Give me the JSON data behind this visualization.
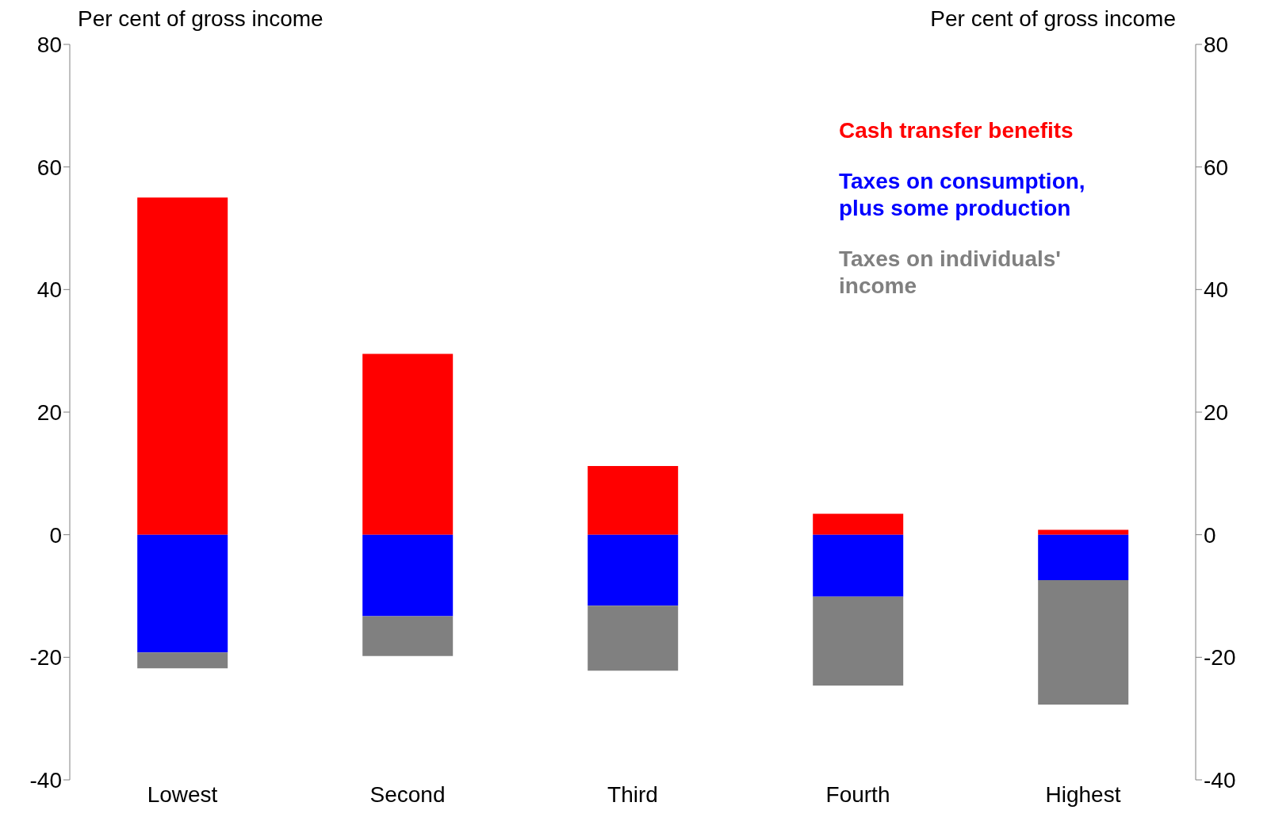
{
  "chart_data": {
    "type": "bar",
    "stacked": true,
    "categories": [
      "Lowest",
      "Second",
      "Third",
      "Fourth",
      "Highest"
    ],
    "series": [
      {
        "name": "Cash transfer benefits",
        "color": "#ff0000",
        "values": [
          55.0,
          29.5,
          11.2,
          3.4,
          0.8
        ]
      },
      {
        "name": "Taxes on consumption, plus some production",
        "color": "#0000ff",
        "values": [
          -19.2,
          -13.3,
          -11.6,
          -10.1,
          -7.4
        ]
      },
      {
        "name": "Taxes on individuals' income",
        "color": "#808080",
        "values": [
          -2.6,
          -6.5,
          -10.6,
          -14.5,
          -20.3
        ]
      }
    ],
    "ylabel": "Per cent of gross income",
    "y2label": "Per cent of gross income",
    "ylim": [
      -40,
      80
    ],
    "yticks": [
      -40,
      -20,
      0,
      20,
      40,
      60,
      80
    ],
    "y2lim": [
      -40,
      80
    ],
    "y2ticks": [
      -40,
      -20,
      0,
      20,
      40,
      60,
      80
    ],
    "grid": false,
    "legend": "top right"
  }
}
